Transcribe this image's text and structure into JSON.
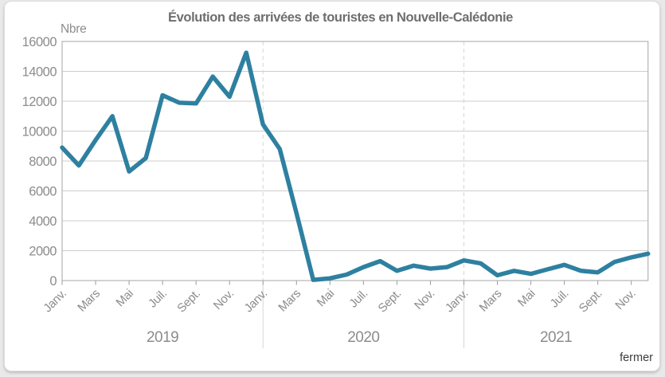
{
  "page": {
    "close_label": "fermer"
  },
  "chart_data": {
    "type": "line",
    "title": "Évolution des arrivées de touristes en Nouvelle-Calédonie",
    "ylabel": "Nbre",
    "ylim": [
      0,
      16000
    ],
    "y_tick_labels": [
      "0",
      "2000",
      "4000",
      "6000",
      "8000",
      "10000",
      "12000",
      "14000",
      "16000"
    ],
    "x_axis": {
      "month_tick_labels": [
        "Janv.",
        "Mars",
        "Mai",
        "Juil.",
        "Sept.",
        "Nov."
      ],
      "tick_every_n_months": 2,
      "year_labels": [
        "2019",
        "2020",
        "2021"
      ],
      "year_separator_month_indices": [
        12,
        24
      ]
    },
    "grid": true,
    "legend": false,
    "series": [
      {
        "name": "Arrivées de touristes",
        "values": [
          8900,
          7700,
          9400,
          11000,
          7300,
          8200,
          12400,
          11900,
          11850,
          13650,
          12300,
          15250,
          10450,
          8800,
          4500,
          50,
          150,
          400,
          900,
          1300,
          650,
          1000,
          800,
          900,
          1350,
          1150,
          350,
          650,
          450,
          750,
          1050,
          650,
          550,
          1250,
          1550,
          1800
        ]
      }
    ],
    "colors": {
      "line": "#2e80a0",
      "grid": "#cdcdcd",
      "plot_border": "#b3b3b3",
      "axis_text": "#8c8c8c",
      "title_text": "#6e6e6e",
      "year_separator": "#d6d6d6",
      "tick_mark": "#9a9a9a",
      "close_text": "#3c3c3c",
      "page_bg": "#e9e9e9",
      "card_bg": "#ffffff"
    }
  }
}
